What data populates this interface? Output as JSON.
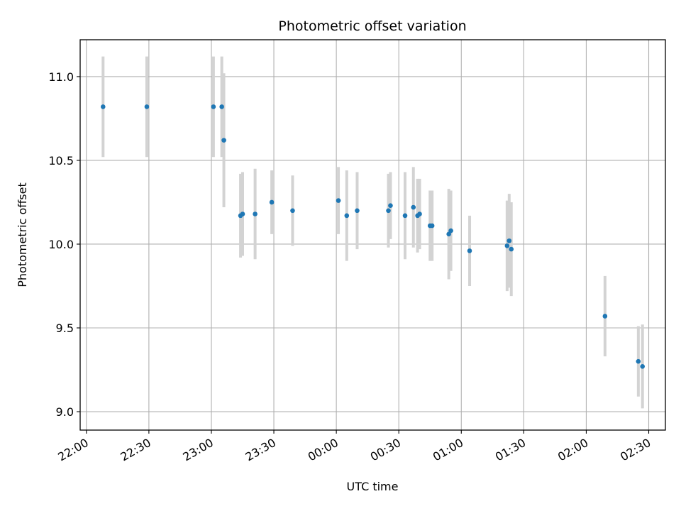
{
  "chart_data": {
    "type": "scatter",
    "title": "Photometric offset variation",
    "xlabel": "UTC time",
    "ylabel": "Photometric offset",
    "xlim": [
      "21:57",
      "02:38"
    ],
    "ylim": [
      8.89,
      11.22
    ],
    "grid": true,
    "x_ticks": [
      "22:00",
      "22:30",
      "23:00",
      "23:30",
      "00:00",
      "00:30",
      "01:00",
      "01:30",
      "02:00",
      "02:30"
    ],
    "y_ticks": [
      "9.0",
      "9.5",
      "10.0",
      "10.5",
      "11.0"
    ],
    "colors": {
      "points": "#1f77b4",
      "error_bars": "#d3d3d3",
      "grid": "#b0b0b0",
      "axes": "#000000"
    },
    "points": [
      {
        "x": "22:08",
        "y": 10.82,
        "err": 0.3
      },
      {
        "x": "22:29",
        "y": 10.82,
        "err": 0.3
      },
      {
        "x": "23:01",
        "y": 10.82,
        "err": 0.3
      },
      {
        "x": "23:05",
        "y": 10.82,
        "err": 0.3
      },
      {
        "x": "23:06",
        "y": 10.62,
        "err": 0.4
      },
      {
        "x": "23:14",
        "y": 10.17,
        "err": 0.25
      },
      {
        "x": "23:15",
        "y": 10.18,
        "err": 0.25
      },
      {
        "x": "23:21",
        "y": 10.18,
        "err": 0.27
      },
      {
        "x": "23:29",
        "y": 10.25,
        "err": 0.19
      },
      {
        "x": "23:39",
        "y": 10.2,
        "err": 0.21
      },
      {
        "x": "00:01",
        "y": 10.26,
        "err": 0.2
      },
      {
        "x": "00:05",
        "y": 10.17,
        "err": 0.27
      },
      {
        "x": "00:10",
        "y": 10.2,
        "err": 0.23
      },
      {
        "x": "00:25",
        "y": 10.2,
        "err": 0.22
      },
      {
        "x": "00:26",
        "y": 10.23,
        "err": 0.2
      },
      {
        "x": "00:33",
        "y": 10.17,
        "err": 0.26
      },
      {
        "x": "00:37",
        "y": 10.22,
        "err": 0.24
      },
      {
        "x": "00:39",
        "y": 10.17,
        "err": 0.22
      },
      {
        "x": "00:40",
        "y": 10.18,
        "err": 0.21
      },
      {
        "x": "00:45",
        "y": 10.11,
        "err": 0.21
      },
      {
        "x": "00:46",
        "y": 10.11,
        "err": 0.21
      },
      {
        "x": "00:54",
        "y": 10.06,
        "err": 0.27
      },
      {
        "x": "00:55",
        "y": 10.08,
        "err": 0.24
      },
      {
        "x": "01:04",
        "y": 9.96,
        "err": 0.21
      },
      {
        "x": "01:22",
        "y": 9.99,
        "err": 0.27
      },
      {
        "x": "01:23",
        "y": 10.02,
        "err": 0.28
      },
      {
        "x": "01:24",
        "y": 9.97,
        "err": 0.28
      },
      {
        "x": "02:09",
        "y": 9.57,
        "err": 0.24
      },
      {
        "x": "02:25",
        "y": 9.3,
        "err": 0.21
      },
      {
        "x": "02:27",
        "y": 9.27,
        "err": 0.25
      }
    ]
  }
}
